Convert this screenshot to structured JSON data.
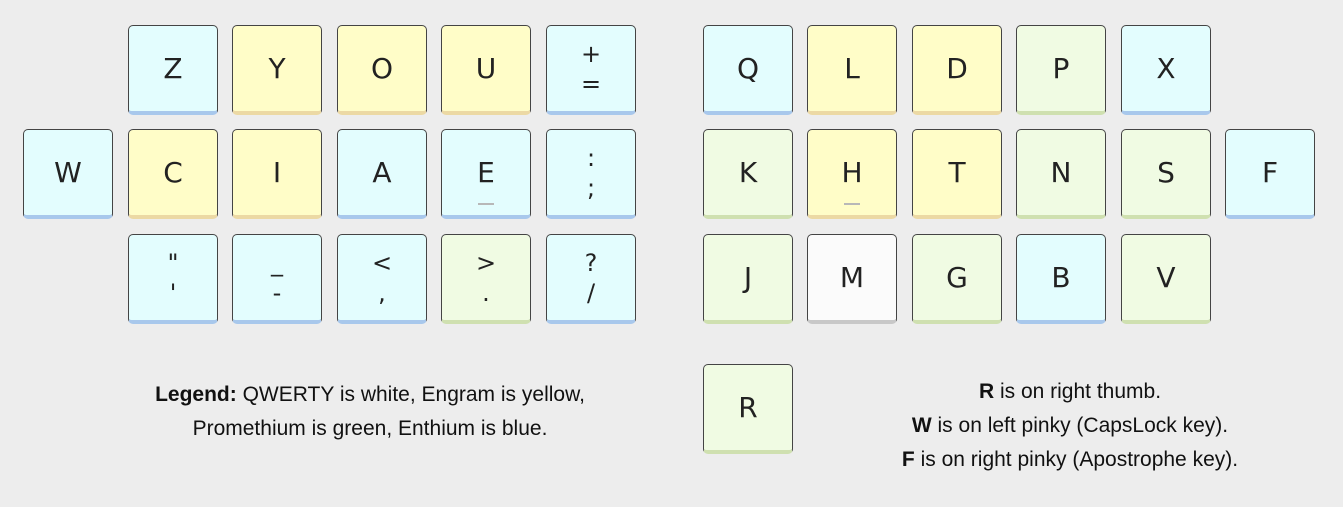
{
  "colors": {
    "qwerty": "#fbfbfb",
    "engram": "#fffdc8",
    "promethium": "#f0fbe3",
    "enthium": "#e3fdfe"
  },
  "keys": [
    {
      "id": "z",
      "label": "Z",
      "color": "blue"
    },
    {
      "id": "y",
      "label": "Y",
      "color": "yellow"
    },
    {
      "id": "o",
      "label": "O",
      "color": "yellow"
    },
    {
      "id": "u",
      "label": "U",
      "color": "yellow"
    },
    {
      "id": "plus-equals",
      "top": "+",
      "bottom": "=",
      "color": "blue"
    },
    {
      "id": "q",
      "label": "Q",
      "color": "blue"
    },
    {
      "id": "l",
      "label": "L",
      "color": "yellow"
    },
    {
      "id": "d",
      "label": "D",
      "color": "yellow"
    },
    {
      "id": "p",
      "label": "P",
      "color": "green"
    },
    {
      "id": "x",
      "label": "X",
      "color": "blue"
    },
    {
      "id": "w",
      "label": "W",
      "color": "blue"
    },
    {
      "id": "c",
      "label": "C",
      "color": "yellow"
    },
    {
      "id": "i",
      "label": "I",
      "color": "yellow"
    },
    {
      "id": "a",
      "label": "A",
      "color": "blue"
    },
    {
      "id": "e",
      "label": "E",
      "color": "blue",
      "homing": true
    },
    {
      "id": "colon-semicolon",
      "top": ":",
      "bottom": ";",
      "color": "blue"
    },
    {
      "id": "k",
      "label": "K",
      "color": "green"
    },
    {
      "id": "h",
      "label": "H",
      "color": "yellow",
      "homing": true
    },
    {
      "id": "t",
      "label": "T",
      "color": "yellow"
    },
    {
      "id": "n",
      "label": "N",
      "color": "green"
    },
    {
      "id": "s",
      "label": "S",
      "color": "green"
    },
    {
      "id": "f",
      "label": "F",
      "color": "blue"
    },
    {
      "id": "quote-apostrophe",
      "top": "\"",
      "bottom": "'",
      "color": "blue"
    },
    {
      "id": "underscore-minus",
      "top": "_",
      "bottom": "-",
      "color": "blue"
    },
    {
      "id": "less-comma",
      "top": "<",
      "bottom": ",",
      "color": "blue"
    },
    {
      "id": "greater-period",
      "top": ">",
      "bottom": ".",
      "color": "green"
    },
    {
      "id": "question-slash",
      "top": "?",
      "bottom": "/",
      "color": "blue"
    },
    {
      "id": "j",
      "label": "J",
      "color": "green"
    },
    {
      "id": "m",
      "label": "M",
      "color": "white"
    },
    {
      "id": "g",
      "label": "G",
      "color": "green"
    },
    {
      "id": "b",
      "label": "B",
      "color": "blue"
    },
    {
      "id": "v",
      "label": "V",
      "color": "green"
    },
    {
      "id": "r",
      "label": "R",
      "color": "green"
    }
  ],
  "legend": {
    "title": "Legend:",
    "line1": "QWERTY is white, Engram is yellow,",
    "line2": "Promethium is green, Enthium is blue."
  },
  "notes": [
    {
      "key": "R",
      "text": "is on right thumb."
    },
    {
      "key": "W",
      "text": "is on left pinky (CapsLock key)."
    },
    {
      "key": "F",
      "text": "is on right pinky (Apostrophe key)."
    }
  ]
}
